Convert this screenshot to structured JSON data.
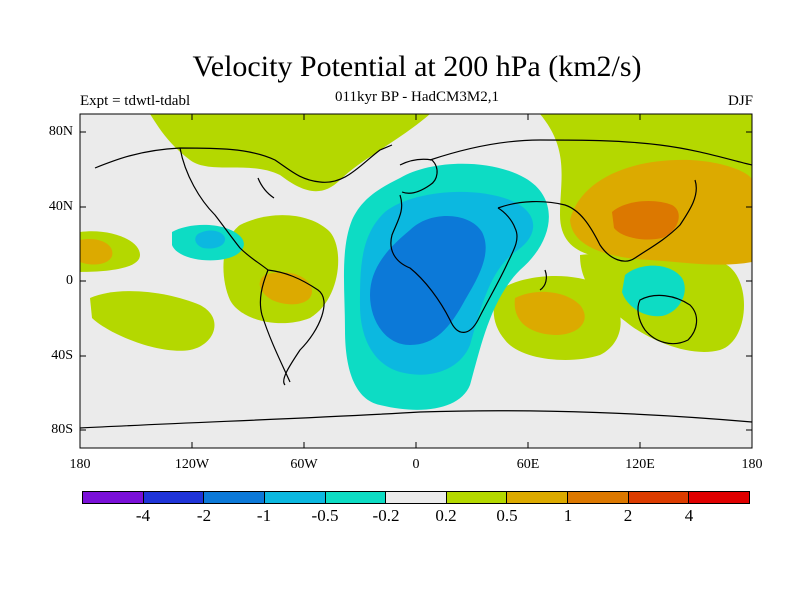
{
  "header": {
    "title": "Velocity Potential at 200 hPa (km2/s)",
    "subtitle": "011kyr BP - HadCM3M2,1",
    "experiment": "Expt = tdwtl-tdabl",
    "season": "DJF"
  },
  "axes": {
    "lat_labels": [
      "80N",
      "40N",
      "0",
      "40S",
      "80S"
    ],
    "lon_labels": [
      "180",
      "120W",
      "60W",
      "0",
      "60E",
      "120E",
      "180"
    ]
  },
  "colorbar": {
    "colors": [
      "#7a10d8",
      "#1f34d8",
      "#0c79d8",
      "#0cb8e0",
      "#0ddcc4",
      "#ebebeb",
      "#b4d800",
      "#dcaa00",
      "#dc7800",
      "#dc3c00",
      "#e00000"
    ],
    "labels": [
      "-4",
      "-2",
      "-1",
      "-0.5",
      "-0.2",
      "0.2",
      "0.5",
      "1",
      "2",
      "4"
    ]
  },
  "map_legend": {
    "ocean_fill": "#ebebeb",
    "coast_color": "#000000"
  }
}
